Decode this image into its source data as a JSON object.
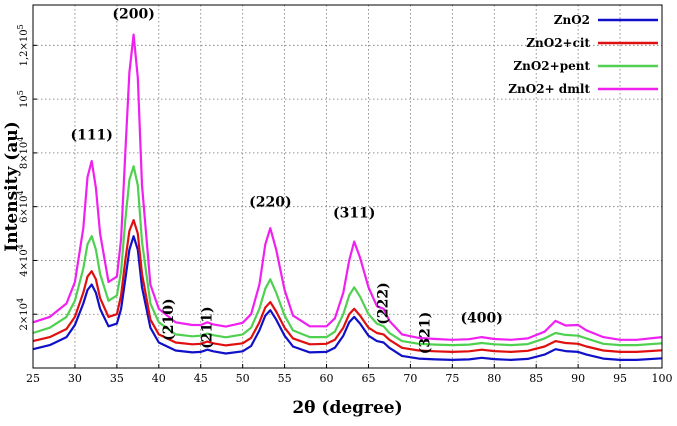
{
  "chart_data": {
    "type": "line",
    "title": "",
    "xlabel": "2θ (degree)",
    "ylabel": "Intensity (au)",
    "xlim": [
      25,
      100
    ],
    "ylim": [
      0,
      135000
    ],
    "grid": true,
    "legend_position": "top-right",
    "x_ticks": [
      "25",
      "30",
      "35",
      "40",
      "45",
      "50",
      "55",
      "60",
      "65",
      "70",
      "75",
      "80",
      "85",
      "90",
      "95",
      "100"
    ],
    "y_ticks": [
      {
        "value": 20000,
        "mant": "2×10",
        "exp": "4"
      },
      {
        "value": 40000,
        "mant": "4×10",
        "exp": "4"
      },
      {
        "value": 60000,
        "mant": "6×10",
        "exp": "4"
      },
      {
        "value": 80000,
        "mant": "8×10",
        "exp": "4"
      },
      {
        "value": 100000,
        "mant": "10",
        "exp": "5"
      },
      {
        "value": 120000,
        "mant": "1,2×10",
        "exp": "5"
      }
    ],
    "annotations": [
      {
        "text": "(111)",
        "x": 32,
        "y": 85000,
        "rotate": false
      },
      {
        "text": "(200)",
        "x": 37,
        "y": 130000,
        "rotate": false
      },
      {
        "text": "(210)",
        "x": 41.2,
        "y": 18000,
        "rotate": true
      },
      {
        "text": "(211)",
        "x": 45.8,
        "y": 15000,
        "rotate": true
      },
      {
        "text": "(220)",
        "x": 53.3,
        "y": 60000,
        "rotate": false
      },
      {
        "text": "(311)",
        "x": 63.3,
        "y": 56000,
        "rotate": false
      },
      {
        "text": "(222)",
        "x": 66.8,
        "y": 24000,
        "rotate": true
      },
      {
        "text": "(321)",
        "x": 71.8,
        "y": 13000,
        "rotate": true
      },
      {
        "text": "(400)",
        "x": 78.5,
        "y": 17000,
        "rotate": false
      }
    ],
    "series": [
      {
        "name": "ZnO2",
        "color": "#1010c8",
        "x": [
          25,
          27,
          29,
          30,
          31,
          31.5,
          32,
          32.5,
          33,
          34,
          35,
          35.5,
          36,
          36.5,
          37,
          37.5,
          38,
          39,
          40,
          42,
          44,
          45,
          45.8,
          46.5,
          48,
          50,
          51,
          52,
          52.7,
          53.3,
          54,
          55,
          56,
          58,
          60,
          61,
          62,
          62.7,
          63.3,
          64,
          65,
          66,
          66.8,
          67.5,
          69,
          71,
          73,
          75,
          77,
          78.5,
          80,
          82,
          84,
          86,
          87.3,
          88.5,
          90,
          91,
          93,
          95,
          97,
          100
        ],
        "y": [
          7000,
          8500,
          11500,
          16000,
          24000,
          29000,
          31000,
          28000,
          22000,
          15500,
          16500,
          22000,
          33000,
          44000,
          49000,
          44000,
          30000,
          15000,
          9500,
          6500,
          5800,
          6000,
          6800,
          6200,
          5400,
          6200,
          8200,
          14000,
          19500,
          21500,
          18000,
          12000,
          8000,
          5800,
          6000,
          7500,
          12000,
          17000,
          19000,
          16500,
          12000,
          10000,
          9500,
          7500,
          4500,
          3500,
          3200,
          3000,
          3200,
          3800,
          3300,
          3000,
          3400,
          5000,
          7000,
          6300,
          6000,
          5000,
          3500,
          3000,
          3000,
          3600
        ]
      },
      {
        "name": "ZnO2+cit",
        "color": "#e01010",
        "x": [
          25,
          27,
          29,
          30,
          31,
          31.5,
          32,
          32.5,
          33,
          34,
          35,
          35.5,
          36,
          36.5,
          37,
          37.5,
          38,
          39,
          40,
          42,
          44,
          45,
          45.8,
          46.5,
          48,
          50,
          51,
          52,
          52.7,
          53.3,
          54,
          55,
          56,
          58,
          60,
          61,
          62,
          62.7,
          63.3,
          64,
          65,
          66,
          66.8,
          67.5,
          69,
          71,
          73,
          75,
          77,
          78.5,
          80,
          82,
          84,
          86,
          87.3,
          88.5,
          90,
          91,
          93,
          95,
          97,
          100
        ],
        "y": [
          10000,
          11500,
          14500,
          19000,
          28000,
          34000,
          36000,
          33000,
          26000,
          19000,
          20000,
          27000,
          40000,
          51000,
          55000,
          50000,
          35000,
          18000,
          12500,
          9500,
          8800,
          9000,
          9800,
          9200,
          8400,
          9200,
          11200,
          17000,
          22500,
          24500,
          21000,
          15000,
          11000,
          8800,
          9000,
          10500,
          15000,
          20000,
          22000,
          19500,
          15000,
          13000,
          12500,
          10500,
          7500,
          6500,
          6200,
          6000,
          6200,
          6800,
          6300,
          6000,
          6400,
          8000,
          10000,
          9300,
          9000,
          8000,
          6500,
          6000,
          6000,
          6600
        ]
      },
      {
        "name": "ZnO2+pent",
        "color": "#50d050",
        "x": [
          25,
          27,
          29,
          30,
          31,
          31.5,
          32,
          32.5,
          33,
          34,
          35,
          35.5,
          36,
          36.5,
          37,
          37.5,
          38,
          39,
          40,
          42,
          44,
          45,
          45.8,
          46.5,
          48,
          50,
          51,
          52,
          52.7,
          53.3,
          54,
          55,
          56,
          58,
          60,
          61,
          62,
          62.7,
          63.3,
          64,
          65,
          66,
          66.8,
          67.5,
          69,
          71,
          73,
          75,
          77,
          78.5,
          80,
          82,
          84,
          86,
          87.3,
          88.5,
          90,
          91,
          93,
          95,
          97,
          100
        ],
        "y": [
          13000,
          15000,
          19000,
          25000,
          37000,
          46000,
          49000,
          44000,
          35000,
          25000,
          27000,
          36000,
          55000,
          70000,
          75000,
          68000,
          47000,
          24000,
          17000,
          12500,
          11800,
          12000,
          12800,
          12200,
          11400,
          12500,
          15000,
          22000,
          29500,
          33000,
          28000,
          19500,
          14000,
          11500,
          11500,
          13500,
          20000,
          27000,
          30000,
          26500,
          20000,
          16500,
          15500,
          13000,
          10000,
          9000,
          8700,
          8500,
          8700,
          9300,
          8800,
          8500,
          8900,
          11000,
          13000,
          12300,
          12000,
          11000,
          9000,
          8500,
          8500,
          9200
        ]
      },
      {
        "name": "ZnO2+ dmlt",
        "color": "#f020f0",
        "x": [
          25,
          27,
          29,
          30,
          31,
          31.5,
          32,
          32.5,
          33,
          34,
          35,
          35.5,
          36,
          36.5,
          37,
          37.5,
          38,
          39,
          40,
          42,
          44,
          45,
          45.8,
          46.5,
          48,
          50,
          51,
          52,
          52.7,
          53.3,
          54,
          55,
          56,
          58,
          60,
          61,
          62,
          62.7,
          63.3,
          64,
          65,
          66,
          66.8,
          67.5,
          69,
          71,
          73,
          75,
          77,
          78.5,
          80,
          82,
          84,
          86,
          87.3,
          88.5,
          90,
          91,
          93,
          95,
          97,
          100
        ],
        "y": [
          17000,
          19000,
          24000,
          32000,
          52000,
          71000,
          77000,
          67000,
          50000,
          32000,
          34000,
          48000,
          80000,
          110000,
          124000,
          108000,
          68000,
          31000,
          22000,
          17000,
          16000,
          16000,
          17000,
          16200,
          15400,
          16800,
          20000,
          31000,
          46000,
          52000,
          44000,
          29000,
          19500,
          15500,
          15500,
          18500,
          28000,
          40000,
          47000,
          41000,
          30000,
          23000,
          22000,
          17500,
          12500,
          11200,
          10800,
          10500,
          10700,
          11500,
          10800,
          10500,
          11000,
          13500,
          17500,
          15800,
          16000,
          14000,
          11500,
          10500,
          10500,
          11500
        ]
      }
    ]
  }
}
